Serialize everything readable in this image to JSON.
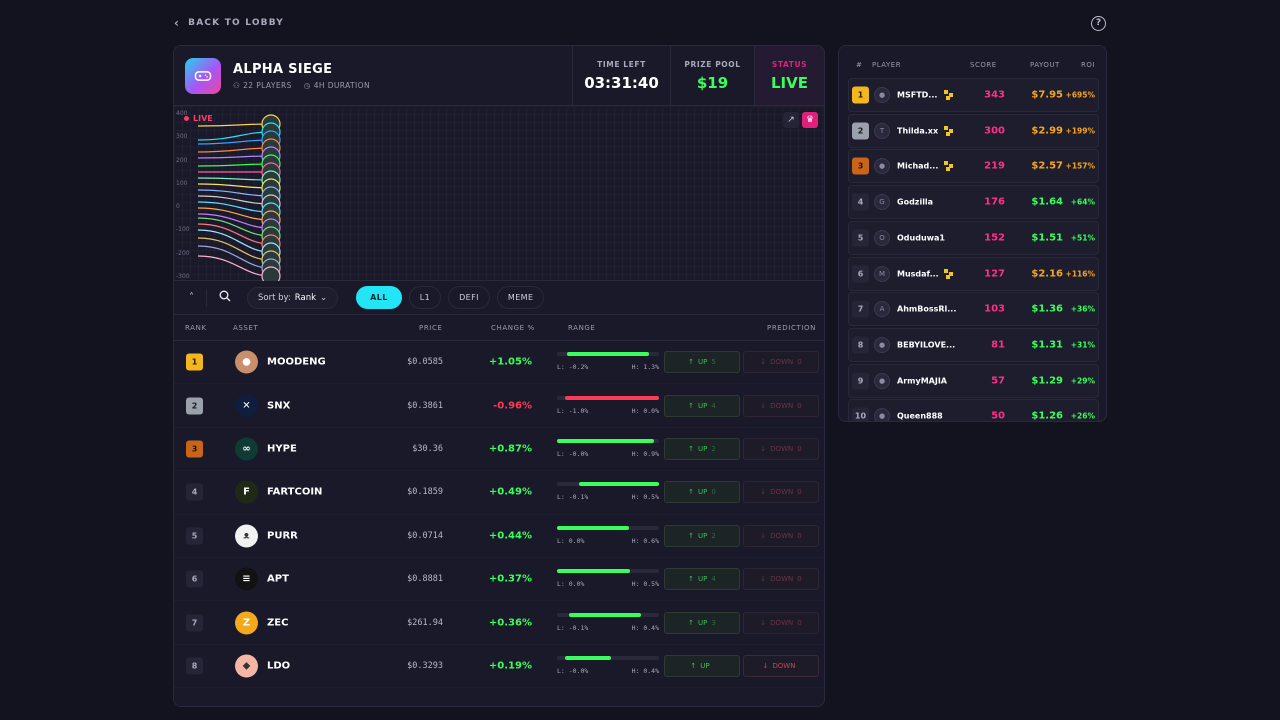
{
  "nav": {
    "back_label": "BACK TO LOBBY",
    "help_icon": "?"
  },
  "game": {
    "title": "ALPHA SIEGE",
    "players": "22 PLAYERS",
    "duration": "4H DURATION",
    "time_left_label": "TIME LEFT",
    "time_left": "03:31:40",
    "prize_label": "PRIZE POOL",
    "prize": "$19",
    "status_label": "STATUS",
    "status": "LIVE"
  },
  "chart": {
    "live_label": "LIVE",
    "yticks": [
      "400",
      "300",
      "200",
      "100",
      "0",
      "-100",
      "-200",
      "-300"
    ]
  },
  "filters": {
    "sort_label": "Sort by:",
    "sort_value": "Rank",
    "categories": [
      "ALL",
      "L1",
      "DEFI",
      "MEME"
    ],
    "active": "ALL"
  },
  "table": {
    "headers": {
      "rank": "RANK",
      "asset": "ASSET",
      "price": "PRICE",
      "change": "CHANGE %",
      "range": "RANGE",
      "prediction": "PREDICTION"
    },
    "up_label": "UP",
    "down_label": "DOWN",
    "rows": [
      {
        "rank": "1",
        "name": "MOODENG",
        "price": "$0.0585",
        "change": "+1.05%",
        "dir": "up",
        "low": "L: -0.2%",
        "high": "H: 1.3%",
        "fill_start": 0.1,
        "fill_end": 0.9,
        "up": "5",
        "down": "0",
        "icon_color": "#c98f6a",
        "icon_glyph": "●"
      },
      {
        "rank": "2",
        "name": "SNX",
        "price": "$0.3861",
        "change": "-0.96%",
        "dir": "down",
        "low": "L: -1.0%",
        "high": "H: 0.0%",
        "fill_start": 0.08,
        "fill_end": 1.0,
        "up": "4",
        "down": "0",
        "icon_color": "#0e1e3c",
        "icon_glyph": "✕"
      },
      {
        "rank": "3",
        "name": "HYPE",
        "price": "$30.36",
        "change": "+0.87%",
        "dir": "up",
        "low": "L: -0.0%",
        "high": "H: 0.9%",
        "fill_start": 0.0,
        "fill_end": 0.95,
        "up": "2",
        "down": "0",
        "icon_color": "#0f3b34",
        "icon_glyph": "∞"
      },
      {
        "rank": "4",
        "name": "FARTCOIN",
        "price": "$0.1859",
        "change": "+0.49%",
        "dir": "up",
        "low": "L: -0.1%",
        "high": "H: 0.5%",
        "fill_start": 0.22,
        "fill_end": 1.0,
        "up": "0",
        "down": "0",
        "icon_color": "#1e2a16",
        "icon_glyph": "F"
      },
      {
        "rank": "5",
        "name": "PURR",
        "price": "$0.0714",
        "change": "+0.44%",
        "dir": "up",
        "low": "L: 0.0%",
        "high": "H: 0.6%",
        "fill_start": 0.0,
        "fill_end": 0.71,
        "up": "2",
        "down": "0",
        "icon_color": "#f2f2f2",
        "icon_glyph": "ᴥ"
      },
      {
        "rank": "6",
        "name": "APT",
        "price": "$0.8881",
        "change": "+0.37%",
        "dir": "up",
        "low": "L: 0.0%",
        "high": "H: 0.5%",
        "fill_start": 0.0,
        "fill_end": 0.72,
        "up": "4",
        "down": "0",
        "icon_color": "#121212",
        "icon_glyph": "≡"
      },
      {
        "rank": "7",
        "name": "ZEC",
        "price": "$261.94",
        "change": "+0.36%",
        "dir": "up",
        "low": "L: -0.1%",
        "high": "H: 0.4%",
        "fill_start": 0.12,
        "fill_end": 0.82,
        "up": "3",
        "down": "0",
        "icon_color": "#f2a91e",
        "icon_glyph": "Z"
      },
      {
        "rank": "8",
        "name": "LDO",
        "price": "$0.3293",
        "change": "+0.19%",
        "dir": "up",
        "low": "L: -0.0%",
        "high": "H: 0.4%",
        "fill_start": 0.08,
        "fill_end": 0.53,
        "up": "",
        "down": "",
        "icon_color": "#f6b6a6",
        "icon_glyph": "◆"
      }
    ]
  },
  "leaderboard": {
    "headers": {
      "rank": "#",
      "player": "PLAYER",
      "score": "SCORE",
      "payout": "PAYOUT",
      "roi": "ROI"
    },
    "rows": [
      {
        "rank": "1",
        "initial": "●",
        "name": "MSFTD...",
        "badge": true,
        "score": "343",
        "payout": "$7.95",
        "roi": "+695%",
        "hot": true
      },
      {
        "rank": "2",
        "initial": "T",
        "name": "Thilda.xx",
        "badge": true,
        "score": "300",
        "payout": "$2.99",
        "roi": "+199%",
        "hot": true
      },
      {
        "rank": "3",
        "initial": "●",
        "name": "Michad...",
        "badge": true,
        "score": "219",
        "payout": "$2.57",
        "roi": "+157%",
        "hot": true
      },
      {
        "rank": "4",
        "initial": "G",
        "name": "Godzilla",
        "badge": false,
        "score": "176",
        "payout": "$1.64",
        "roi": "+64%",
        "hot": false
      },
      {
        "rank": "5",
        "initial": "O",
        "name": "Oduduwa1",
        "badge": false,
        "score": "152",
        "payout": "$1.51",
        "roi": "+51%",
        "hot": false
      },
      {
        "rank": "6",
        "initial": "M",
        "name": "Musdaf...",
        "badge": true,
        "score": "127",
        "payout": "$2.16",
        "roi": "+116%",
        "hot": true
      },
      {
        "rank": "7",
        "initial": "A",
        "name": "AhmBossRl...",
        "badge": false,
        "score": "103",
        "payout": "$1.36",
        "roi": "+36%",
        "hot": false
      },
      {
        "rank": "8",
        "initial": "●",
        "name": "BEBYILOVE...",
        "badge": false,
        "score": "81",
        "payout": "$1.31",
        "roi": "+31%",
        "hot": false
      },
      {
        "rank": "9",
        "initial": "●",
        "name": "ArmyMAJIA",
        "badge": false,
        "score": "57",
        "payout": "$1.29",
        "roi": "+29%",
        "hot": false
      },
      {
        "rank": "10",
        "initial": "●",
        "name": "Queen888",
        "badge": false,
        "score": "50",
        "payout": "$1.26",
        "roi": "+26%",
        "hot": false
      }
    ]
  },
  "colors": {
    "accent": "#22e5f5",
    "positive": "#39ff5a",
    "negative": "#ff3a55",
    "score": "#ff2f8a",
    "hot": "#f5a524",
    "status_label": "#e0207a"
  }
}
